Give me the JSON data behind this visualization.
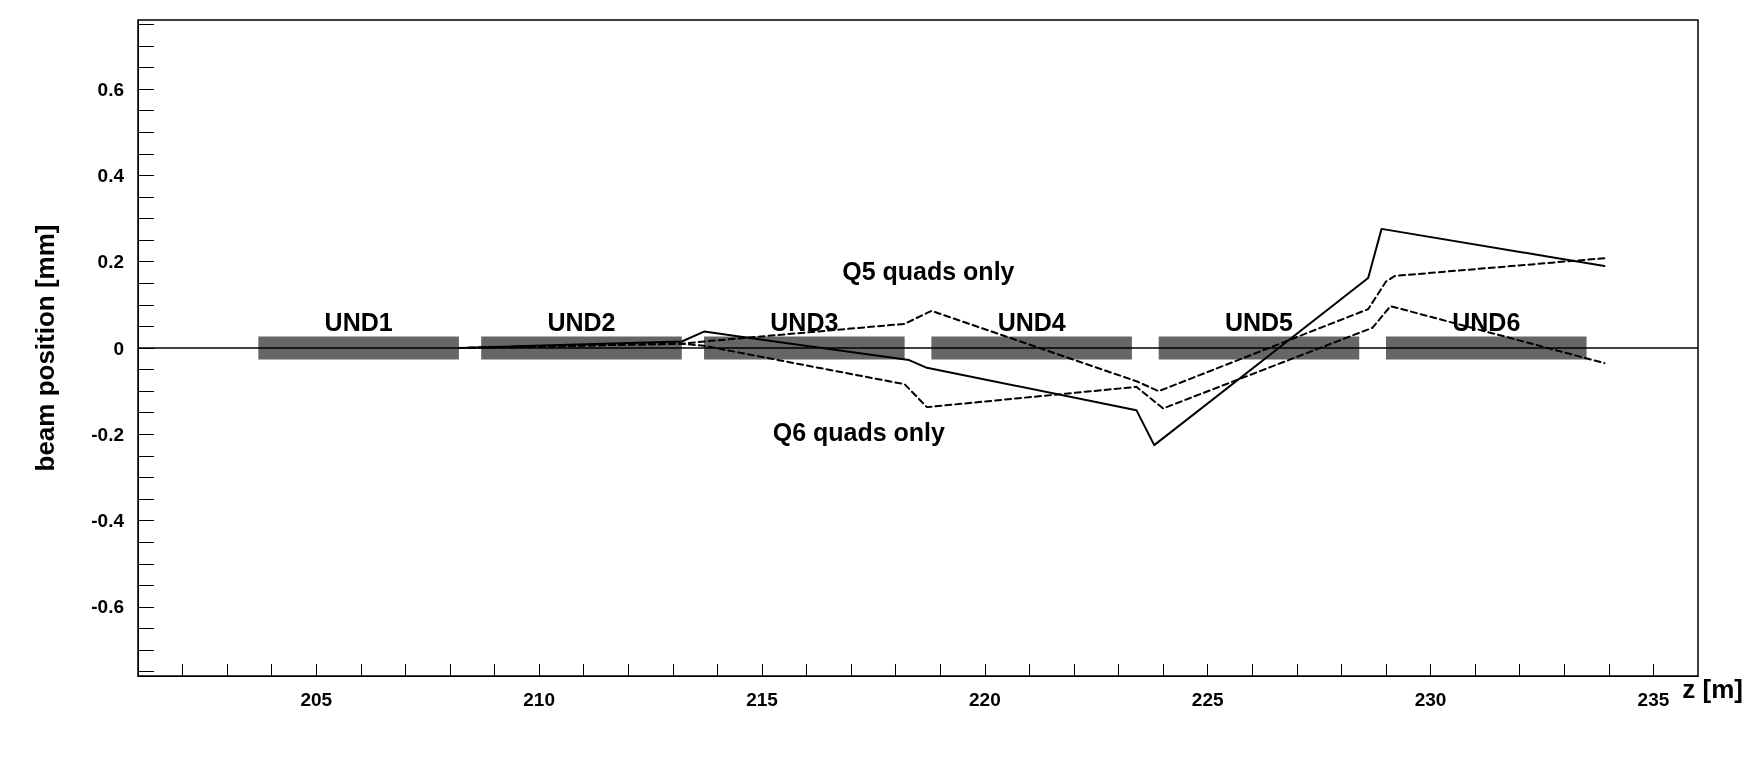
{
  "chart_data": {
    "type": "line",
    "xlabel": "z [m]",
    "ylabel": "beam position [mm]",
    "xlim": [
      201,
      236
    ],
    "ylim": [
      -0.76,
      0.76
    ],
    "xticks": [
      {
        "value": 201,
        "label": null
      },
      {
        "value": 202,
        "label": null
      },
      {
        "value": 203,
        "label": null
      },
      {
        "value": 204,
        "label": null
      },
      205,
      {
        "value": 206,
        "label": null
      },
      {
        "value": 207,
        "label": null
      },
      {
        "value": 208,
        "label": null
      },
      {
        "value": 209,
        "label": null
      },
      210,
      {
        "value": 211,
        "label": null
      },
      {
        "value": 212,
        "label": null
      },
      {
        "value": 213,
        "label": null
      },
      {
        "value": 214,
        "label": null
      },
      215,
      {
        "value": 216,
        "label": null
      },
      {
        "value": 217,
        "label": null
      },
      {
        "value": 218,
        "label": null
      },
      {
        "value": 219,
        "label": null
      },
      220,
      {
        "value": 221,
        "label": null
      },
      {
        "value": 222,
        "label": null
      },
      {
        "value": 223,
        "label": null
      },
      {
        "value": 224,
        "label": null
      },
      225,
      {
        "value": 226,
        "label": null
      },
      {
        "value": 227,
        "label": null
      },
      {
        "value": 228,
        "label": null
      },
      {
        "value": 229,
        "label": null
      },
      230,
      {
        "value": 231,
        "label": null
      },
      {
        "value": 232,
        "label": null
      },
      {
        "value": 233,
        "label": null
      },
      {
        "value": 234,
        "label": null
      },
      235
    ],
    "yticks": [
      {
        "value": -0.75,
        "label": null
      },
      {
        "value": -0.7,
        "label": null
      },
      {
        "value": -0.65,
        "label": null
      },
      -0.6,
      {
        "value": -0.55,
        "label": null
      },
      {
        "value": -0.5,
        "label": null
      },
      {
        "value": -0.45,
        "label": null
      },
      -0.4,
      {
        "value": -0.35,
        "label": null
      },
      {
        "value": -0.3,
        "label": null
      },
      {
        "value": -0.25,
        "label": null
      },
      -0.2,
      {
        "value": -0.15,
        "label": null
      },
      {
        "value": -0.1,
        "label": null
      },
      {
        "value": -0.05,
        "label": null
      },
      0,
      {
        "value": 0.05,
        "label": null
      },
      {
        "value": 0.1,
        "label": null
      },
      {
        "value": 0.15,
        "label": null
      },
      0.2,
      {
        "value": 0.25,
        "label": null
      },
      {
        "value": 0.3,
        "label": null
      },
      {
        "value": 0.35,
        "label": null
      },
      0.4,
      {
        "value": 0.45,
        "label": null
      },
      {
        "value": 0.5,
        "label": null
      },
      {
        "value": 0.55,
        "label": null
      },
      0.6,
      {
        "value": 0.65,
        "label": null
      },
      {
        "value": 0.7,
        "label": null
      },
      {
        "value": 0.75,
        "label": null
      }
    ],
    "grid": false,
    "legend": false,
    "marker": "none",
    "series": [
      {
        "color": "#000000",
        "line_style": "solid",
        "x": [
          208.2,
          213.2,
          213.7,
          218.3,
          218.7,
          223.4,
          223.8,
          228.6,
          228.9,
          233.9
        ],
        "values": [
          0,
          0.015,
          0.038,
          -0.028,
          -0.046,
          -0.144,
          -0.225,
          0.162,
          0.276,
          0.19
        ]
      },
      {
        "color": "#000000",
        "line_style": "dashed",
        "x": [
          208.2,
          213.2,
          213.7,
          218.2,
          218.8,
          223.4,
          223.9,
          228.6,
          229.0,
          229.2,
          233.9
        ],
        "values": [
          0,
          0.01,
          0.015,
          0.056,
          0.086,
          -0.077,
          -0.1,
          0.09,
          0.154,
          0.167,
          0.208
        ]
      },
      {
        "color": "#000000",
        "line_style": "dashed",
        "x": [
          208.2,
          213.2,
          213.7,
          218.2,
          218.7,
          223.4,
          224.0,
          228.7,
          229.1,
          233.9
        ],
        "values": [
          0,
          0.01,
          0.005,
          -0.084,
          -0.137,
          -0.09,
          -0.14,
          0.047,
          0.097,
          -0.035
        ]
      },
      {
        "name": "UND1",
        "color": "#666666",
        "x": [
          203.7,
          208.2
        ],
        "values": [
          0,
          0
        ]
      },
      {
        "name": "UND2",
        "color": "#666666",
        "x": [
          208.7,
          213.2
        ],
        "values": [
          0,
          0
        ]
      },
      {
        "name": "UND3",
        "color": "#666666",
        "x": [
          213.7,
          218.2
        ],
        "values": [
          0,
          0
        ]
      },
      {
        "name": "UND4",
        "color": "#666666",
        "x": [
          218.8,
          223.3
        ],
        "values": [
          0,
          0
        ]
      },
      {
        "name": "UND5",
        "color": "#666666",
        "x": [
          223.9,
          228.4
        ],
        "values": [
          0,
          0
        ]
      },
      {
        "name": "UND6",
        "color": "#666666",
        "x": [
          229.0,
          233.5
        ],
        "values": [
          0,
          0
        ]
      }
    ],
    "ref_lines": [
      {
        "axis": "y",
        "value": 0,
        "color": "#000000",
        "line_style": "solid"
      }
    ],
    "annotations": [
      "Q5 quads only",
      "Q6 quads only"
    ]
  }
}
